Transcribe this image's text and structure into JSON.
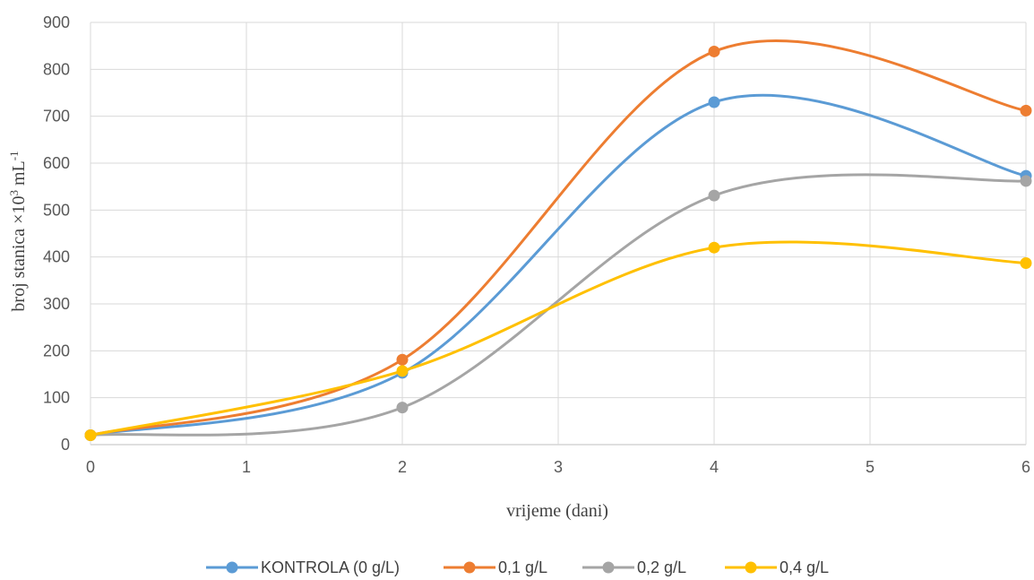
{
  "chart_data": {
    "type": "line",
    "xlabel": "vrijeme (dani)",
    "ylabel_main": "broj stanica ×10",
    "ylabel_sup1": "3",
    "ylabel_mid": " mL",
    "ylabel_sup2": "-1",
    "xlim": [
      0,
      6
    ],
    "ylim": [
      0,
      900
    ],
    "x_ticks": [
      "0",
      "1",
      "2",
      "3",
      "4",
      "5",
      "6"
    ],
    "y_ticks": [
      "0",
      "100",
      "200",
      "300",
      "400",
      "500",
      "600",
      "700",
      "800",
      "900"
    ],
    "grid": true,
    "legend_position": "bottom",
    "x": [
      0,
      2,
      4,
      6
    ],
    "series": [
      {
        "name": "KONTROLA (0 g/L)",
        "color": "#5b9bd5",
        "values": [
          20,
          153,
          730,
          573
        ]
      },
      {
        "name": "0,1 g/L",
        "color": "#ed7d31",
        "values": [
          20,
          181,
          838,
          712
        ]
      },
      {
        "name": "0,2 g/L",
        "color": "#a5a5a5",
        "values": [
          20,
          79,
          531,
          562
        ]
      },
      {
        "name": "0,4 g/L",
        "color": "#ffc000",
        "values": [
          20,
          157,
          420,
          387
        ]
      }
    ]
  }
}
